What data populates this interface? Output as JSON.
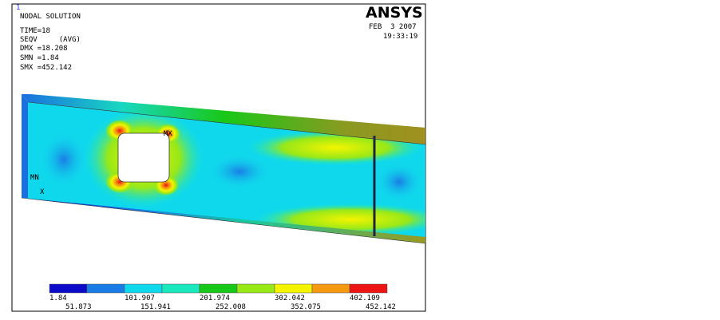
{
  "header": {
    "window_number": "1",
    "title": "NODAL SOLUTION",
    "lines": [
      "TIME=18",
      "SEQV     (AVG)",
      "DMX =18.208",
      "SMN =1.84",
      "SMX =452.142"
    ],
    "logo": "ANSYS",
    "date": "FEB  3 2007",
    "time": "19:33:19"
  },
  "model": {
    "max_label": "MX",
    "min_label": "MN",
    "axis_label": "X"
  },
  "legend": {
    "colors": [
      "#0c0cc8",
      "#1a7ce6",
      "#10d8ec",
      "#18e8bc",
      "#18c818",
      "#98e818",
      "#f4f400",
      "#f49a10",
      "#ec1414"
    ],
    "labels": [
      "1.84",
      "51.873",
      "101.907",
      "151.941",
      "201.974",
      "252.008",
      "302.042",
      "352.075",
      "402.109",
      "452.142"
    ]
  }
}
